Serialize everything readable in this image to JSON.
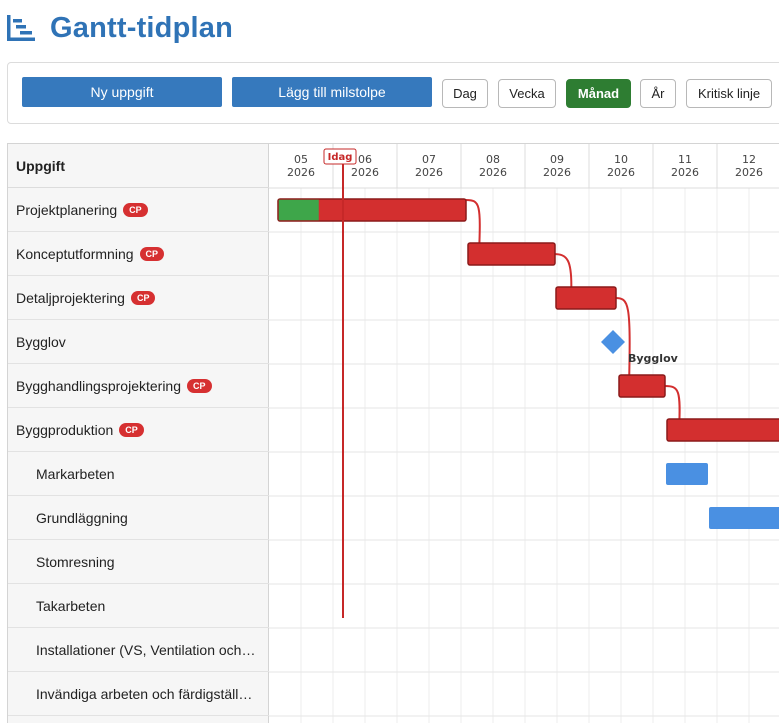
{
  "page": {
    "title": "Gantt-tidplan",
    "title_icon": "gantt-chart-icon"
  },
  "toolbar": {
    "new_task": "Ny uppgift",
    "add_milestone": "Lägg till milstolpe",
    "views": [
      {
        "label": "Dag",
        "active": false
      },
      {
        "label": "Vecka",
        "active": false
      },
      {
        "label": "Månad",
        "active": true
      },
      {
        "label": "År",
        "active": false
      }
    ],
    "critical_path": "Kritisk linje"
  },
  "gantt": {
    "task_header": "Uppgift",
    "today_label": "Idag",
    "cp_badge": "CP",
    "months": [
      {
        "month": "05",
        "year": "2026"
      },
      {
        "month": "06",
        "year": "2026"
      },
      {
        "month": "07",
        "year": "2026"
      },
      {
        "month": "08",
        "year": "2026"
      },
      {
        "month": "09",
        "year": "2026"
      },
      {
        "month": "10",
        "year": "2026"
      },
      {
        "month": "11",
        "year": "2026"
      },
      {
        "month": "12",
        "year": "2026"
      }
    ],
    "tasks": [
      {
        "name": "Projektplanering",
        "critical": true,
        "level": 0
      },
      {
        "name": "Konceptutformning",
        "critical": true,
        "level": 0
      },
      {
        "name": "Detaljprojektering",
        "critical": true,
        "level": 0
      },
      {
        "name": "Bygglov",
        "critical": false,
        "level": 0
      },
      {
        "name": "Bygghandlingsprojektering",
        "critical": true,
        "level": 0
      },
      {
        "name": "Byggproduktion",
        "critical": true,
        "level": 0
      },
      {
        "name": "Markarbeten",
        "critical": false,
        "level": 1
      },
      {
        "name": "Grundläggning",
        "critical": false,
        "level": 1
      },
      {
        "name": "Stomresning",
        "critical": false,
        "level": 1
      },
      {
        "name": "Takarbeten",
        "critical": false,
        "level": 1
      },
      {
        "name": "Installationer (VS, Ventilation och El)",
        "critical": false,
        "level": 1
      },
      {
        "name": "Invändiga arbeten och färdigställande",
        "critical": false,
        "level": 1
      }
    ],
    "milestone_label": "Bygglov",
    "colors": {
      "critical": "#d32f2f",
      "critical_border": "#8b1a1a",
      "progress": "#3ea64a",
      "normal": "#4a90e2",
      "today": "#c62828",
      "accent": "#2f73b6"
    }
  }
}
